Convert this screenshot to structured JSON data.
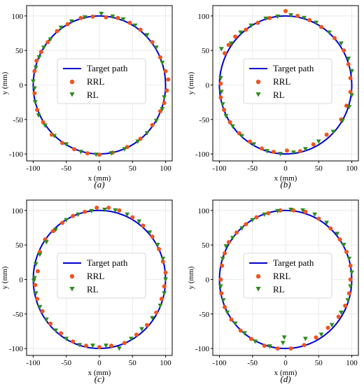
{
  "chart_data": [
    {
      "type": "scatter",
      "caption": "(a)",
      "xlabel": "x (mm)",
      "ylabel": "y (mm)",
      "xlim": [
        -110,
        110
      ],
      "ylim": [
        -110,
        115
      ],
      "xticks": [
        -100,
        -50,
        0,
        50,
        100
      ],
      "yticks": [
        -100,
        -50,
        0,
        50,
        100
      ],
      "grid": true,
      "legend": {
        "placement": "center",
        "entries": [
          "Target path",
          "RRL",
          "RL"
        ]
      },
      "target_path": {
        "type": "circle",
        "center": [
          0,
          0
        ],
        "radius": 100,
        "color": "#0000cc"
      },
      "series": [
        {
          "name": "RRL",
          "marker": "circle",
          "color": "#f0541e",
          "points": [
            [
              -98,
              20
            ],
            [
              -95,
              35
            ],
            [
              -88,
              48
            ],
            [
              -78,
              62
            ],
            [
              -64,
              78
            ],
            [
              -48,
              88
            ],
            [
              -28,
              97
            ],
            [
              -10,
              99
            ],
            [
              10,
              98
            ],
            [
              28,
              97
            ],
            [
              46,
              90
            ],
            [
              62,
              80
            ],
            [
              80,
              62
            ],
            [
              92,
              40
            ],
            [
              100,
              20
            ],
            [
              104,
              8
            ],
            [
              102,
              -8
            ],
            [
              98,
              -26
            ],
            [
              92,
              -38
            ],
            [
              80,
              -58
            ],
            [
              62,
              -78
            ],
            [
              42,
              -90
            ],
            [
              20,
              -98
            ],
            [
              0,
              -101
            ],
            [
              -18,
              -99
            ],
            [
              -38,
              -93
            ],
            [
              -56,
              -84
            ],
            [
              -72,
              -72
            ],
            [
              -85,
              -54
            ],
            [
              -94,
              -36
            ],
            [
              -98,
              -12
            ]
          ]
        },
        {
          "name": "RL",
          "marker": "triangle-down",
          "color": "#2e8b1e",
          "points": [
            [
              -100,
              5
            ],
            [
              -98,
              -5
            ],
            [
              -96,
              25
            ],
            [
              -91,
              40
            ],
            [
              -84,
              54
            ],
            [
              -74,
              66
            ],
            [
              -58,
              83
            ],
            [
              -42,
              92
            ],
            [
              -22,
              98
            ],
            [
              3,
              103
            ],
            [
              20,
              99
            ],
            [
              36,
              95
            ],
            [
              54,
              86
            ],
            [
              72,
              72
            ],
            [
              86,
              54
            ],
            [
              95,
              32
            ],
            [
              98,
              -18
            ],
            [
              95,
              -35
            ],
            [
              86,
              -52
            ],
            [
              72,
              -70
            ],
            [
              58,
              -82
            ],
            [
              38,
              -93
            ],
            [
              18,
              -99
            ],
            [
              -5,
              -101
            ],
            [
              -28,
              -97
            ],
            [
              -50,
              -86
            ],
            [
              -68,
              -74
            ],
            [
              -82,
              -59
            ],
            [
              -92,
              -44
            ],
            [
              -97,
              -25
            ]
          ]
        }
      ]
    },
    {
      "type": "scatter",
      "caption": "(b)",
      "xlabel": "x (mm)",
      "ylabel": "y (mm)",
      "xlim": [
        -110,
        110
      ],
      "ylim": [
        -110,
        115
      ],
      "xticks": [
        -100,
        -50,
        0,
        50,
        100
      ],
      "yticks": [
        -100,
        -50,
        0,
        50,
        100
      ],
      "grid": true,
      "legend": {
        "placement": "center",
        "entries": [
          "Target path",
          "RRL",
          "RL"
        ]
      },
      "target_path": {
        "type": "circle",
        "center": [
          0,
          0
        ],
        "radius": 100,
        "color": "#0000cc"
      },
      "series": [
        {
          "name": "RRL",
          "marker": "circle",
          "color": "#f0541e",
          "points": [
            [
              -92,
              46
            ],
            [
              -86,
              58
            ],
            [
              -76,
              70
            ],
            [
              -60,
              80
            ],
            [
              -42,
              90
            ],
            [
              -24,
              97
            ],
            [
              0,
              107
            ],
            [
              18,
              100
            ],
            [
              36,
              94
            ],
            [
              54,
              84
            ],
            [
              74,
              68
            ],
            [
              88,
              50
            ],
            [
              95,
              30
            ],
            [
              98,
              10
            ],
            [
              98,
              -10
            ],
            [
              92,
              -30
            ],
            [
              84,
              -50
            ],
            [
              62,
              -72
            ],
            [
              42,
              -86
            ],
            [
              22,
              -96
            ],
            [
              2,
              -95
            ],
            [
              -18,
              -97
            ],
            [
              -36,
              -92
            ],
            [
              -54,
              -82
            ],
            [
              -70,
              -70
            ],
            [
              -84,
              -54
            ],
            [
              -93,
              -36
            ],
            [
              -98,
              -18
            ],
            [
              -98,
              2
            ]
          ]
        },
        {
          "name": "RL",
          "marker": "triangle-down",
          "color": "#2e8b1e",
          "points": [
            [
              -97,
              52
            ],
            [
              -82,
              60
            ],
            [
              -68,
              76
            ],
            [
              -52,
              86
            ],
            [
              -30,
              96
            ],
            [
              -12,
              99
            ],
            [
              8,
              101
            ],
            [
              28,
              97
            ],
            [
              46,
              90
            ],
            [
              66,
              76
            ],
            [
              84,
              60
            ],
            [
              95,
              38
            ],
            [
              100,
              20
            ],
            [
              100,
              -15
            ],
            [
              96,
              -32
            ],
            [
              86,
              -52
            ],
            [
              72,
              -68
            ],
            [
              50,
              -82
            ],
            [
              30,
              -93
            ],
            [
              12,
              -98
            ],
            [
              -8,
              -100
            ],
            [
              -28,
              -96
            ],
            [
              -48,
              -86
            ],
            [
              -66,
              -74
            ],
            [
              -80,
              -60
            ],
            [
              -90,
              -45
            ],
            [
              -95,
              -28
            ],
            [
              -97,
              -10
            ],
            [
              -98,
              10
            ]
          ]
        }
      ]
    },
    {
      "type": "scatter",
      "caption": "(c)",
      "xlabel": "x (mm)",
      "ylabel": "y (mm)",
      "xlim": [
        -110,
        110
      ],
      "ylim": [
        -110,
        115
      ],
      "xticks": [
        -100,
        -50,
        0,
        50,
        100
      ],
      "yticks": [
        -100,
        -50,
        0,
        50,
        100
      ],
      "grid": true,
      "legend": {
        "placement": "center",
        "entries": [
          "Target path",
          "RRL",
          "RL"
        ]
      },
      "target_path": {
        "type": "circle",
        "center": [
          0,
          0
        ],
        "radius": 100,
        "color": "#0000cc"
      },
      "series": [
        {
          "name": "RRL",
          "marker": "circle",
          "color": "#f0541e",
          "points": [
            [
              -90,
              40
            ],
            [
              -82,
              58
            ],
            [
              -70,
              70
            ],
            [
              -56,
              82
            ],
            [
              -40,
              92
            ],
            [
              -22,
              98
            ],
            [
              -4,
              104
            ],
            [
              14,
              104
            ],
            [
              30,
              100
            ],
            [
              50,
              90
            ],
            [
              66,
              78
            ],
            [
              80,
              62
            ],
            [
              90,
              44
            ],
            [
              96,
              26
            ],
            [
              100,
              10
            ],
            [
              98,
              -10
            ],
            [
              94,
              -28
            ],
            [
              86,
              -48
            ],
            [
              72,
              -66
            ],
            [
              56,
              -80
            ],
            [
              38,
              -92
            ],
            [
              18,
              -96
            ],
            [
              0,
              -98
            ],
            [
              -20,
              -96
            ],
            [
              -40,
              -90
            ],
            [
              -58,
              -78
            ],
            [
              -74,
              -64
            ],
            [
              -86,
              -46
            ],
            [
              -94,
              -28
            ],
            [
              -97,
              -8
            ],
            [
              -93,
              12
            ]
          ]
        },
        {
          "name": "RL",
          "marker": "triangle-down",
          "color": "#2e8b1e",
          "points": [
            [
              -98,
              2
            ],
            [
              -96,
              22
            ],
            [
              -90,
              36
            ],
            [
              -80,
              54
            ],
            [
              -66,
              72
            ],
            [
              -50,
              86
            ],
            [
              -32,
              94
            ],
            [
              -12,
              99
            ],
            [
              8,
              101
            ],
            [
              24,
              100
            ],
            [
              42,
              94
            ],
            [
              60,
              84
            ],
            [
              76,
              68
            ],
            [
              88,
              50
            ],
            [
              96,
              30
            ],
            [
              100,
              0
            ],
            [
              98,
              -20
            ],
            [
              92,
              -38
            ],
            [
              80,
              -56
            ],
            [
              64,
              -72
            ],
            [
              48,
              -86
            ],
            [
              30,
              -100
            ],
            [
              10,
              -96
            ],
            [
              -10,
              -96
            ],
            [
              -30,
              -95
            ],
            [
              -50,
              -86
            ],
            [
              -66,
              -74
            ],
            [
              -80,
              -58
            ],
            [
              -90,
              -40
            ],
            [
              -96,
              -20
            ],
            [
              -99,
              -2
            ]
          ]
        }
      ]
    },
    {
      "type": "scatter",
      "caption": "(d)",
      "xlabel": "x (mm)",
      "ylabel": "y (mm)",
      "xlim": [
        -110,
        110
      ],
      "ylim": [
        -110,
        115
      ],
      "xticks": [
        -100,
        -50,
        0,
        50,
        100
      ],
      "yticks": [
        -100,
        -50,
        0,
        50,
        100
      ],
      "grid": true,
      "legend": {
        "placement": "center",
        "entries": [
          "Target path",
          "RRL",
          "RL"
        ]
      },
      "target_path": {
        "type": "circle",
        "center": [
          0,
          0
        ],
        "radius": 100,
        "color": "#0000cc"
      },
      "series": [
        {
          "name": "RRL",
          "marker": "circle",
          "color": "#f0541e",
          "points": [
            [
              -92,
              38
            ],
            [
              -86,
              54
            ],
            [
              -74,
              68
            ],
            [
              -60,
              80
            ],
            [
              -44,
              90
            ],
            [
              -26,
              96
            ],
            [
              -8,
              100
            ],
            [
              12,
              100
            ],
            [
              30,
              98
            ],
            [
              50,
              88
            ],
            [
              68,
              74
            ],
            [
              82,
              58
            ],
            [
              92,
              40
            ],
            [
              98,
              20
            ],
            [
              98,
              0
            ],
            [
              96,
              -20
            ],
            [
              90,
              -38
            ],
            [
              80,
              -54
            ],
            [
              64,
              -70
            ],
            [
              46,
              -84
            ],
            [
              28,
              -95
            ],
            [
              8,
              -100
            ],
            [
              -12,
              -100
            ],
            [
              -32,
              -96
            ],
            [
              -52,
              -86
            ],
            [
              -68,
              -74
            ],
            [
              -82,
              -58
            ],
            [
              -92,
              -40
            ],
            [
              -97,
              -20
            ],
            [
              -98,
              0
            ],
            [
              -96,
              20
            ]
          ]
        },
        {
          "name": "RL",
          "marker": "triangle-down",
          "color": "#2e8b1e",
          "points": [
            [
              -95,
              30
            ],
            [
              -90,
              48
            ],
            [
              -80,
              60
            ],
            [
              -66,
              74
            ],
            [
              -50,
              86
            ],
            [
              -32,
              94
            ],
            [
              -12,
              99
            ],
            [
              8,
              101
            ],
            [
              26,
              100
            ],
            [
              44,
              94
            ],
            [
              62,
              82
            ],
            [
              78,
              66
            ],
            [
              88,
              50
            ],
            [
              96,
              30
            ],
            [
              100,
              10
            ],
            [
              98,
              -10
            ],
            [
              94,
              -30
            ],
            [
              84,
              -48
            ],
            [
              70,
              -66
            ],
            [
              54,
              -80
            ],
            [
              30,
              -86
            ],
            [
              -2,
              -84
            ],
            [
              -4,
              -92
            ],
            [
              -24,
              -97
            ],
            [
              -46,
              -90
            ],
            [
              -62,
              -78
            ],
            [
              -76,
              -64
            ],
            [
              -88,
              -48
            ],
            [
              -94,
              -30
            ],
            [
              -98,
              -10
            ]
          ]
        }
      ]
    }
  ]
}
